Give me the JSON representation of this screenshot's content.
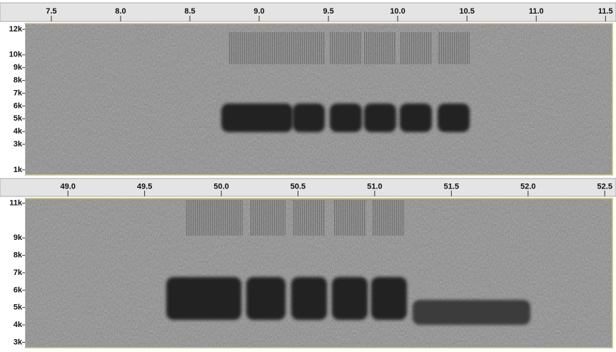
{
  "chart_data": [
    {
      "type": "spectrogram",
      "xlim": [
        7.31,
        11.55
      ],
      "xticks": [
        7.5,
        {
          "value": 8,
          "label": "8.0"
        },
        8.5,
        {
          "value": 9,
          "label": "9.0"
        },
        9.5,
        {
          "value": 10,
          "label": "10.0"
        },
        10.5,
        {
          "value": 11,
          "label": "11.0"
        },
        11.5
      ],
      "ylim": [
        600,
        12450
      ],
      "yticks": [
        {
          "value": 1000,
          "label": "1k"
        },
        {
          "value": 3000,
          "label": "3k"
        },
        {
          "value": 4000,
          "label": "4k"
        },
        {
          "value": 5000,
          "label": "5k"
        },
        {
          "value": 6000,
          "label": "6k"
        },
        {
          "value": 7000,
          "label": "7k"
        },
        {
          "value": 8000,
          "label": "8k"
        },
        {
          "value": 9000,
          "label": "9k"
        },
        {
          "value": 10000,
          "label": "10k"
        },
        {
          "value": 12000,
          "label": "12k"
        }
      ]
    },
    {
      "type": "spectrogram",
      "xlim": [
        48.72,
        52.55
      ],
      "xticks": [
        {
          "value": 49,
          "label": "49.0"
        },
        49.5,
        {
          "value": 50,
          "label": "50.0"
        },
        50.5,
        {
          "value": 51,
          "label": "51.0"
        },
        51.5,
        {
          "value": 52,
          "label": "52.0"
        },
        52.5
      ],
      "ylim": [
        2690,
        11270
      ],
      "yticks": [
        {
          "value": 3000,
          "label": "3k"
        },
        {
          "value": 4000,
          "label": "4k"
        },
        {
          "value": 5000,
          "label": "5k"
        },
        {
          "value": 6000,
          "label": "6k"
        },
        {
          "value": 7000,
          "label": "7k"
        },
        {
          "value": 8000,
          "label": "8k"
        },
        {
          "value": 9000,
          "label": "9k"
        },
        {
          "value": 11000,
          "label": "11k"
        }
      ]
    }
  ]
}
